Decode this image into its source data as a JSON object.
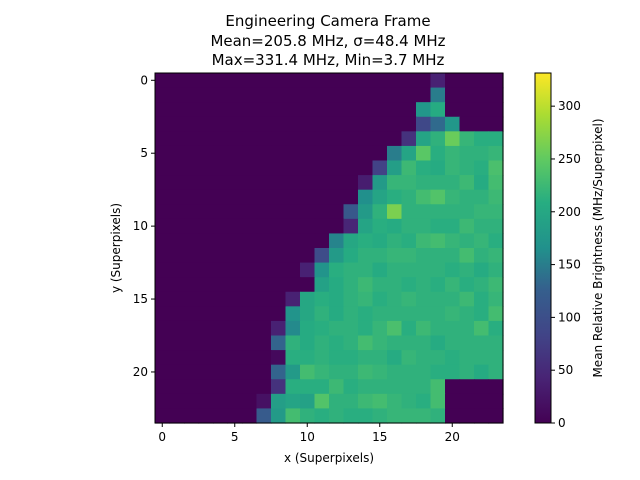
{
  "chart_data": {
    "type": "heatmap",
    "title_lines": [
      "Engineering Camera Frame",
      "Mean=205.8 MHz, σ=48.4 MHz",
      "Max=331.4 MHz, Min=3.7 MHz"
    ],
    "xlabel": "x (Superpixels)",
    "ylabel": "y (Superpixels)",
    "colorbar_label": "Mean Relative Brightness (MHz/Superpixel)",
    "colormap": "viridis",
    "grid": false,
    "x_range": [
      -0.5,
      23.5
    ],
    "y_range": [
      -0.5,
      23.5
    ],
    "y_inverted": true,
    "x_ticks": [
      0,
      5,
      10,
      15,
      20
    ],
    "y_ticks": [
      0,
      5,
      10,
      15,
      20
    ],
    "color_range": [
      0,
      331.4
    ],
    "colorbar_ticks": [
      0,
      50,
      100,
      150,
      200,
      250,
      300
    ],
    "values": [
      [
        0,
        0,
        0,
        0,
        0,
        0,
        0,
        0,
        0,
        0,
        0,
        0,
        0,
        0,
        0,
        0,
        0,
        0,
        0,
        40,
        0,
        0,
        0,
        0
      ],
      [
        0,
        0,
        0,
        0,
        0,
        0,
        0,
        0,
        0,
        0,
        0,
        0,
        0,
        0,
        0,
        0,
        0,
        0,
        0,
        150,
        0,
        0,
        0,
        0
      ],
      [
        0,
        0,
        0,
        0,
        0,
        0,
        0,
        0,
        0,
        0,
        0,
        0,
        0,
        0,
        0,
        0,
        0,
        0,
        175,
        205,
        0,
        0,
        0,
        0
      ],
      [
        0,
        0,
        0,
        0,
        0,
        0,
        0,
        0,
        0,
        0,
        0,
        0,
        0,
        0,
        0,
        0,
        0,
        0,
        90,
        135,
        175,
        0,
        0,
        0
      ],
      [
        0,
        0,
        0,
        0,
        0,
        0,
        0,
        0,
        0,
        0,
        0,
        0,
        0,
        0,
        0,
        0,
        0,
        60,
        195,
        215,
        255,
        220,
        210,
        210
      ],
      [
        0,
        0,
        0,
        0,
        0,
        0,
        0,
        0,
        0,
        0,
        0,
        0,
        0,
        0,
        0,
        0,
        150,
        195,
        245,
        210,
        220,
        215,
        215,
        220
      ],
      [
        0,
        0,
        0,
        0,
        0,
        0,
        0,
        0,
        0,
        0,
        0,
        0,
        0,
        0,
        0,
        80,
        185,
        225,
        210,
        205,
        220,
        215,
        210,
        235
      ],
      [
        0,
        0,
        0,
        0,
        0,
        0,
        0,
        0,
        0,
        0,
        0,
        0,
        0,
        0,
        35,
        180,
        220,
        220,
        215,
        215,
        215,
        225,
        205,
        230
      ],
      [
        0,
        0,
        0,
        0,
        0,
        0,
        0,
        0,
        0,
        0,
        0,
        0,
        0,
        0,
        165,
        195,
        210,
        215,
        230,
        240,
        220,
        215,
        215,
        225
      ],
      [
        0,
        0,
        0,
        0,
        0,
        0,
        0,
        0,
        0,
        0,
        0,
        0,
        0,
        115,
        180,
        215,
        265,
        215,
        215,
        215,
        215,
        215,
        220,
        220
      ],
      [
        0,
        0,
        0,
        0,
        0,
        0,
        0,
        0,
        0,
        0,
        0,
        0,
        0,
        45,
        195,
        210,
        205,
        215,
        215,
        210,
        210,
        225,
        215,
        215
      ],
      [
        0,
        0,
        0,
        0,
        0,
        0,
        0,
        0,
        0,
        0,
        0,
        0,
        155,
        200,
        210,
        205,
        215,
        210,
        225,
        230,
        220,
        215,
        220,
        210
      ],
      [
        0,
        0,
        0,
        0,
        0,
        0,
        0,
        0,
        0,
        0,
        0,
        95,
        180,
        205,
        215,
        215,
        220,
        220,
        215,
        215,
        215,
        230,
        215,
        220
      ],
      [
        0,
        0,
        0,
        0,
        0,
        0,
        0,
        0,
        0,
        0,
        40,
        170,
        210,
        215,
        215,
        205,
        215,
        215,
        215,
        215,
        210,
        215,
        205,
        215
      ],
      [
        0,
        0,
        0,
        0,
        0,
        0,
        0,
        0,
        0,
        0,
        0,
        190,
        205,
        215,
        225,
        215,
        215,
        210,
        215,
        210,
        220,
        210,
        215,
        225
      ],
      [
        0,
        0,
        0,
        0,
        0,
        0,
        0,
        0,
        0,
        40,
        200,
        210,
        205,
        215,
        220,
        210,
        215,
        220,
        215,
        215,
        215,
        225,
        210,
        220
      ],
      [
        0,
        0,
        0,
        0,
        0,
        0,
        0,
        0,
        0,
        170,
        200,
        215,
        205,
        215,
        210,
        215,
        215,
        215,
        215,
        215,
        220,
        215,
        210,
        230
      ],
      [
        0,
        0,
        0,
        0,
        0,
        0,
        0,
        0,
        40,
        160,
        205,
        210,
        215,
        215,
        210,
        220,
        235,
        210,
        225,
        215,
        215,
        215,
        230,
        210
      ],
      [
        0,
        0,
        0,
        0,
        0,
        0,
        0,
        0,
        130,
        215,
        205,
        215,
        210,
        215,
        230,
        220,
        215,
        215,
        215,
        205,
        215,
        215,
        215,
        215
      ],
      [
        0,
        0,
        0,
        0,
        0,
        0,
        0,
        0,
        10,
        210,
        210,
        215,
        210,
        210,
        215,
        215,
        205,
        220,
        215,
        215,
        210,
        215,
        215,
        215
      ],
      [
        0,
        0,
        0,
        0,
        0,
        0,
        0,
        0,
        130,
        180,
        230,
        220,
        215,
        215,
        225,
        220,
        215,
        215,
        215,
        210,
        210,
        215,
        205,
        215
      ],
      [
        0,
        0,
        0,
        0,
        0,
        0,
        0,
        0,
        60,
        210,
        210,
        210,
        225,
        210,
        215,
        215,
        215,
        215,
        215,
        230,
        0,
        0,
        0,
        0
      ],
      [
        0,
        0,
        0,
        0,
        0,
        0,
        0,
        20,
        185,
        195,
        190,
        240,
        215,
        215,
        225,
        230,
        220,
        215,
        210,
        230,
        0,
        0,
        0,
        0
      ],
      [
        0,
        0,
        0,
        0,
        0,
        0,
        0,
        120,
        180,
        230,
        215,
        210,
        215,
        210,
        210,
        215,
        220,
        220,
        220,
        215,
        0,
        0,
        0,
        0
      ]
    ]
  }
}
